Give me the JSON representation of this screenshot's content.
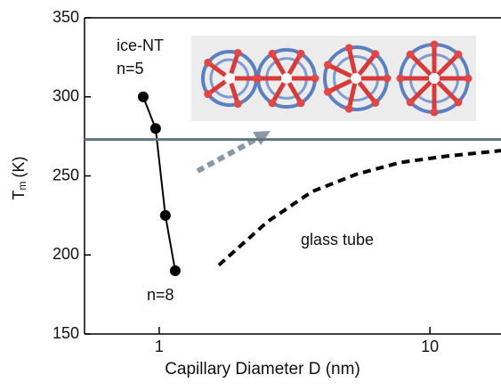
{
  "chart_data": {
    "type": "line",
    "xlabel": "Capillary Diameter D (nm)",
    "ylabel": "T",
    "ylabel_sub": "m",
    "ylabel_unit": "(K)",
    "xscale": "log",
    "xlim": [
      0.53,
      18.3
    ],
    "xticks": [
      1,
      10
    ],
    "ylim": [
      150,
      350
    ],
    "yticks": [
      150,
      200,
      250,
      300,
      350
    ],
    "series": [
      {
        "name": "ice-NT",
        "color": "#000000",
        "dash": "solid",
        "markers": true,
        "x": [
          0.873,
          0.97,
          1.054,
          1.146
        ],
        "values": [
          300,
          280,
          225,
          190
        ]
      },
      {
        "name": "glass tube",
        "color": "#000000",
        "dash": "dashed",
        "markers": false,
        "x": [
          1.66,
          2.51,
          3.66,
          5.34,
          7.78,
          11.4,
          18.3
        ],
        "values": [
          193.5,
          221,
          240,
          251,
          258.5,
          262.4,
          266
        ]
      },
      {
        "color": "#5e7680",
        "dash": "solid",
        "markers": false,
        "x": [
          0.53,
          18.3
        ],
        "values": [
          273,
          273
        ]
      }
    ],
    "annotations": [
      "n=5",
      "n=8"
    ]
  }
}
